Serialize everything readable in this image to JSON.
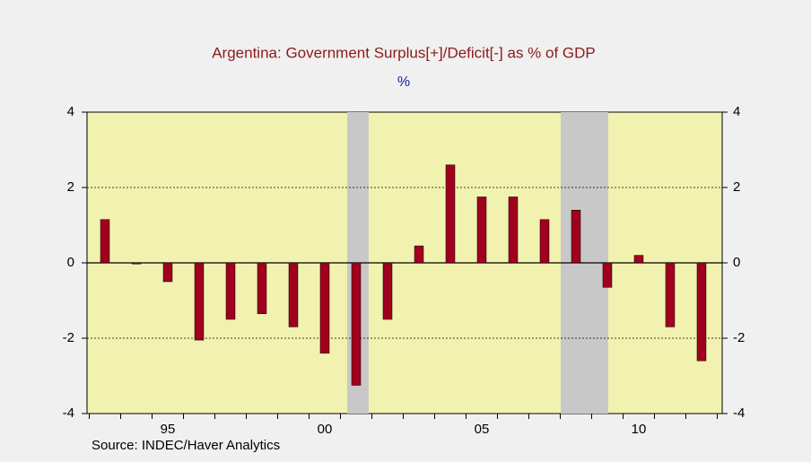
{
  "chart_data": {
    "type": "bar",
    "title": "Argentina: Government Surplus[+]/Deficit[-] as % of GDP",
    "subtitle": "%",
    "source": "Source:  INDEC/Haver Analytics",
    "categories": [
      null,
      null,
      "95",
      null,
      null,
      null,
      null,
      "00",
      null,
      null,
      null,
      null,
      "05",
      null,
      null,
      null,
      null,
      "10",
      null,
      null
    ],
    "values": [
      1.15,
      -0.03,
      -0.5,
      -2.05,
      -1.5,
      -1.35,
      -1.7,
      -2.4,
      -3.25,
      -1.5,
      0.45,
      2.6,
      1.75,
      1.75,
      1.15,
      1.4,
      -0.65,
      0.2,
      -1.7,
      -2.6
    ],
    "color": "#a0001e",
    "ylim": [
      -4,
      4
    ],
    "yticks": [
      -4,
      -2,
      0,
      2,
      4
    ],
    "grid": true
  }
}
